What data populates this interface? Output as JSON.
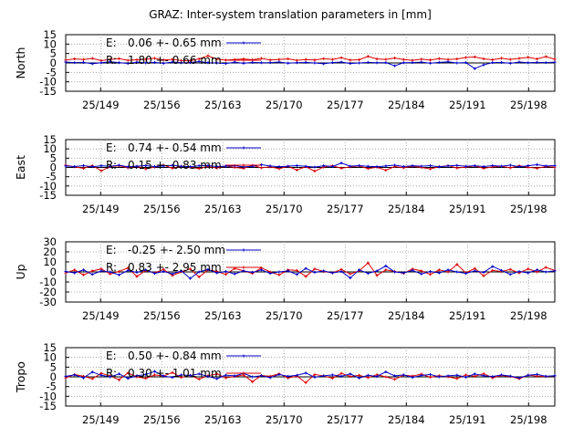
{
  "chart_data": {
    "title": "GRAZ: Inter-system translation parameters in [mm]",
    "type": "line",
    "x_tick_labels": [
      "25/149",
      "25/156",
      "25/163",
      "25/170",
      "25/177",
      "25/184",
      "25/191",
      "25/198"
    ],
    "x_ticks": [
      149,
      156,
      163,
      170,
      177,
      184,
      191,
      198
    ],
    "xlim": [
      145,
      201
    ],
    "grid": "dotted",
    "legend_position": "top-left",
    "colors": {
      "E": "#0000cc",
      "R": "#dd0000"
    },
    "panels": [
      {
        "ylabel": "North",
        "ylim": [
          -15,
          15
        ],
        "y_ticks": [
          15,
          10,
          5,
          0,
          -5,
          -10,
          -15
        ],
        "series": [
          {
            "name": "E",
            "label": "E:",
            "stats": "0.06 +- 0.65 mm",
            "values": [
              0.5,
              0.2,
              0.3,
              -0.4,
              0.1,
              0.6,
              0.2,
              -0.3,
              0.4,
              0.0,
              0.3,
              -0.2,
              0.5,
              0.1,
              0.2,
              0.8,
              0.1,
              0.0,
              -0.3,
              0.4,
              -0.2,
              0.3,
              0.1,
              0.2,
              0.5,
              -0.1,
              0.1,
              0.3,
              0.0,
              -0.4,
              0.2,
              0.5,
              -0.3,
              0.0,
              0.3,
              0.1,
              0.2,
              -1.5,
              0.1,
              0.2,
              0.4,
              -0.1,
              0.3,
              0.6,
              0.0,
              0.2,
              -3.0,
              -1.0,
              0.2,
              0.3,
              -0.2,
              0.5,
              0.1,
              0.3,
              0.2,
              0.4
            ]
          },
          {
            "name": "R",
            "label": "R:",
            "stats": "1.80 +- 0.66 mm",
            "values": [
              1.5,
              2.2,
              1.8,
              2.4,
              1.2,
              1.9,
              2.3,
              1.4,
              1.7,
              2.0,
              2.5,
              1.6,
              1.9,
              1.3,
              1.1,
              2.2,
              3.8,
              2.0,
              1.5,
              1.8,
              2.1,
              1.7,
              2.4,
              1.6,
              1.9,
              2.2,
              1.4,
              1.8,
              1.6,
              2.3,
              1.9,
              2.8,
              1.5,
              1.7,
              3.5,
              2.1,
              1.9,
              2.6,
              1.8,
              1.4,
              2.0,
              1.6,
              2.3,
              1.8,
              2.1,
              2.9,
              3.2,
              2.2,
              1.7,
              2.5,
              1.9,
              2.4,
              3.0,
              2.1,
              3.4,
              2.0
            ]
          }
        ]
      },
      {
        "ylabel": "East",
        "ylim": [
          -15,
          15
        ],
        "y_ticks": [
          15,
          10,
          5,
          0,
          -5,
          -10,
          -15
        ],
        "series": [
          {
            "name": "E",
            "label": "E:",
            "stats": "0.74 +- 0.54 mm",
            "values": [
              0.8,
              0.5,
              1.0,
              0.4,
              0.9,
              0.6,
              1.2,
              0.3,
              0.7,
              1.0,
              0.5,
              0.8,
              1.1,
              0.6,
              0.4,
              0.9,
              1.0,
              0.5,
              0.7,
              0.9,
              0.3,
              0.6,
              1.5,
              0.8,
              0.4,
              0.7,
              1.0,
              0.6,
              0.2,
              0.9,
              0.5,
              2.4,
              0.7,
              1.0,
              0.6,
              0.4,
              0.8,
              1.2,
              0.5,
              0.9,
              0.7,
              1.0,
              0.3,
              0.8,
              1.1,
              0.6,
              0.9,
              0.5,
              1.0,
              0.7,
              1.2,
              0.4,
              0.9,
              1.5,
              0.8,
              1.0
            ]
          },
          {
            "name": "R",
            "label": "R:",
            "stats": "0.15 +- 0.83 mm",
            "values": [
              1.2,
              0.3,
              -0.5,
              1.0,
              -1.8,
              0.4,
              0.9,
              -0.2,
              0.6,
              -0.8,
              0.2,
              1.3,
              -0.4,
              0.7,
              0.1,
              -0.6,
              0.5,
              -0.3,
              0.8,
              0.0,
              -0.5,
              1.1,
              -0.2,
              0.3,
              -0.7,
              0.6,
              -1.4,
              0.4,
              -2.0,
              0.2,
              0.9,
              -0.4,
              0.3,
              0.8,
              -0.6,
              0.1,
              -1.5,
              0.5,
              -0.2,
              0.7,
              0.0,
              -0.8,
              0.4,
              1.0,
              -0.3,
              0.2,
              0.8,
              -0.5,
              0.3,
              0.6,
              -0.2,
              0.9,
              0.1,
              -0.4,
              0.5,
              0.2
            ]
          }
        ]
      },
      {
        "ylabel": "Up",
        "ylim": [
          -30,
          30
        ],
        "y_ticks": [
          30,
          20,
          10,
          0,
          -10,
          -20,
          -30
        ],
        "series": [
          {
            "name": "E",
            "label": "E:",
            "stats": "-0.25 +- 2.50 mm",
            "values": [
              0.5,
              -1.0,
              2.0,
              -2.5,
              1.0,
              0.0,
              -3.0,
              1.5,
              -0.5,
              2.0,
              -1.5,
              0.5,
              -2.0,
              1.0,
              -6.5,
              0.0,
              2.5,
              -1.0,
              0.5,
              -2.0,
              1.0,
              -0.5,
              2.0,
              -1.5,
              0.0,
              1.0,
              -2.5,
              3.5,
              -0.5,
              1.0,
              -1.0,
              0.5,
              -6.0,
              2.0,
              -1.5,
              1.0,
              6.0,
              0.0,
              -1.0,
              1.5,
              -2.0,
              0.5,
              -1.0,
              2.0,
              0.0,
              -1.5,
              1.0,
              -0.5,
              5.5,
              1.5,
              -2.5,
              0.5,
              -1.0,
              2.0,
              0.0,
              1.0
            ]
          },
          {
            "name": "R",
            "label": "R:",
            "stats": "0.83 +- 2.95 mm",
            "values": [
              -1.0,
              2.0,
              -3.0,
              1.0,
              3.0,
              -2.0,
              0.5,
              4.0,
              -4.5,
              1.5,
              -1.0,
              2.5,
              -3.5,
              0.0,
              3.0,
              -5.0,
              2.0,
              0.5,
              -2.5,
              3.5,
              1.0,
              -1.5,
              4.0,
              0.0,
              -3.0,
              2.0,
              1.5,
              -4.5,
              3.0,
              0.5,
              -1.0,
              2.5,
              -2.0,
              1.0,
              9.0,
              -3.5,
              2.0,
              0.5,
              -1.5,
              3.0,
              1.0,
              -2.5,
              2.0,
              0.0,
              7.5,
              -1.0,
              3.5,
              -4.0,
              1.5,
              0.5,
              2.5,
              -1.0,
              3.0,
              0.0,
              4.5,
              1.5
            ]
          }
        ]
      },
      {
        "ylabel": "Tropo",
        "ylim": [
          -15,
          15
        ],
        "y_ticks": [
          15,
          10,
          5,
          0,
          -5,
          -10,
          -15
        ],
        "series": [
          {
            "name": "E",
            "label": "E:",
            "stats": "0.50 +- 0.84 mm",
            "values": [
              0.3,
              1.0,
              -0.5,
              2.5,
              0.8,
              0.0,
              1.5,
              -0.8,
              0.6,
              1.2,
              2.8,
              0.4,
              -0.3,
              1.0,
              0.7,
              1.5,
              0.2,
              -1.0,
              0.9,
              0.5,
              1.8,
              0.0,
              0.6,
              -0.4,
              1.2,
              0.3,
              0.8,
              2.0,
              -0.2,
              0.5,
              1.0,
              0.3,
              1.5,
              -0.6,
              0.8,
              0.2,
              2.6,
              0.5,
              1.0,
              -0.3,
              0.7,
              1.2,
              0.0,
              0.5,
              0.9,
              -0.2,
              1.5,
              0.6,
              0.2,
              1.0,
              0.4,
              -0.5,
              0.8,
              1.3,
              0.3,
              0.6
            ]
          },
          {
            "name": "R",
            "label": "R:",
            "stats": "0.30 +- 1.01 mm",
            "values": [
              -0.5,
              1.2,
              0.3,
              -1.0,
              1.8,
              0.5,
              -1.5,
              2.0,
              0.0,
              -0.8,
              1.0,
              0.4,
              2.2,
              -0.3,
              0.8,
              -1.2,
              0.6,
              1.5,
              -0.5,
              0.2,
              1.0,
              -2.5,
              0.7,
              0.3,
              1.6,
              -0.6,
              0.4,
              -3.0,
              1.2,
              0.5,
              -0.7,
              1.8,
              0.2,
              0.8,
              -0.4,
              1.1,
              0.0,
              -1.3,
              0.9,
              0.4,
              1.4,
              -0.2,
              0.6,
              0.0,
              -0.9,
              1.0,
              0.3,
              1.6,
              -0.5,
              0.7,
              0.2,
              -1.0,
              0.9,
              0.4,
              0.1,
              0.5
            ]
          }
        ]
      }
    ]
  }
}
